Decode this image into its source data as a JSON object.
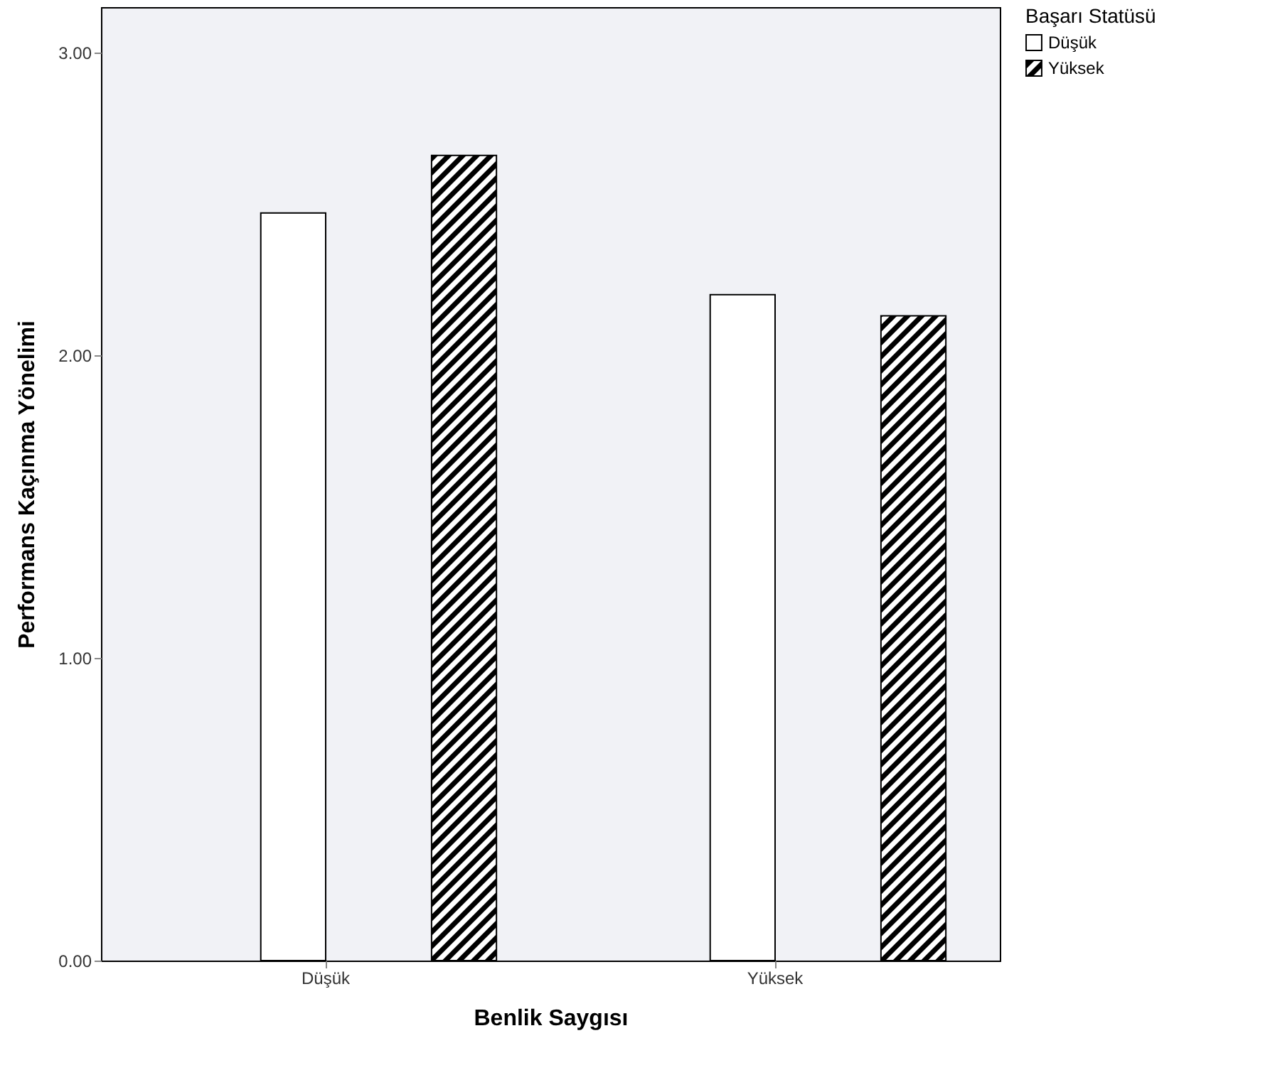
{
  "chart_data": {
    "type": "bar",
    "xlabel": "Benlik Saygısı",
    "ylabel": "Performans Kaçınma Yönelimi",
    "legend_title": "Başarı Statüsü",
    "categories": [
      "Düşük",
      "Yüksek"
    ],
    "series": [
      {
        "name": "Düşük",
        "color": "#ffffff",
        "values": [
          2.47,
          2.2
        ]
      },
      {
        "name": "Yüksek",
        "color": "#000000",
        "values": [
          2.66,
          2.13
        ]
      }
    ],
    "ylim": [
      0,
      3.15
    ],
    "yticks": [
      {
        "value": 0,
        "label": "0.00"
      },
      {
        "value": 1,
        "label": "1.00"
      },
      {
        "value": 2,
        "label": "2.00"
      },
      {
        "value": 3,
        "label": "3.00"
      }
    ],
    "grid": false,
    "legend": "top right"
  }
}
